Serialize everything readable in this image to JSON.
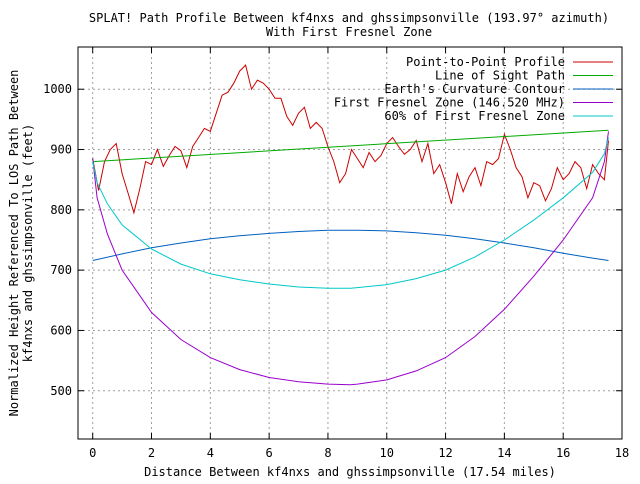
{
  "chart_data": {
    "type": "line",
    "title": "SPLAT! Path Profile Between kf4nxs and ghssimpsonville (193.97° azimuth)",
    "subtitle": "With First Fresnel Zone",
    "xlabel": "Distance Between kf4nxs and ghssimpsonville (17.54 miles)",
    "ylabel_line1": "Normalized Height Referenced To LOS Path Between",
    "ylabel_line2": "kf4nxs and ghssimpsonville (feet)",
    "xlim": [
      -0.5,
      18
    ],
    "ylim": [
      420,
      1070
    ],
    "xticks": [
      0,
      2,
      4,
      6,
      8,
      10,
      12,
      14,
      16,
      18
    ],
    "yticks": [
      500,
      600,
      700,
      800,
      900,
      1000
    ],
    "xtick_labels": [
      "0",
      "2",
      "4",
      "6",
      "8",
      "10",
      "12",
      "14",
      "16",
      "18"
    ],
    "ytick_labels": [
      "500",
      "600",
      "700",
      "800",
      "900",
      "1000"
    ],
    "grid": true,
    "legend_position": "top-right",
    "series": [
      {
        "name": "Point-to-Point Profile",
        "color": "#cc0000",
        "x": [
          0.0,
          0.2,
          0.4,
          0.6,
          0.8,
          1.0,
          1.2,
          1.4,
          1.6,
          1.8,
          2.0,
          2.2,
          2.4,
          2.6,
          2.8,
          3.0,
          3.2,
          3.4,
          3.6,
          3.8,
          4.0,
          4.2,
          4.4,
          4.6,
          4.8,
          5.0,
          5.2,
          5.4,
          5.6,
          5.8,
          6.0,
          6.2,
          6.4,
          6.6,
          6.8,
          7.0,
          7.2,
          7.4,
          7.6,
          7.8,
          8.0,
          8.2,
          8.4,
          8.6,
          8.8,
          9.0,
          9.2,
          9.4,
          9.6,
          9.8,
          10.0,
          10.2,
          10.4,
          10.6,
          10.8,
          11.0,
          11.2,
          11.4,
          11.6,
          11.8,
          12.0,
          12.2,
          12.4,
          12.6,
          12.8,
          13.0,
          13.2,
          13.4,
          13.6,
          13.8,
          14.0,
          14.2,
          14.4,
          14.6,
          14.8,
          15.0,
          15.2,
          15.4,
          15.6,
          15.8,
          16.0,
          16.2,
          16.4,
          16.6,
          16.8,
          17.0,
          17.2,
          17.4,
          17.54
        ],
        "y": [
          885,
          832,
          880,
          900,
          910,
          860,
          828,
          795,
          835,
          880,
          875,
          900,
          872,
          890,
          905,
          898,
          870,
          905,
          920,
          935,
          930,
          960,
          990,
          995,
          1010,
          1030,
          1040,
          1000,
          1015,
          1010,
          1000,
          985,
          985,
          955,
          940,
          960,
          970,
          935,
          945,
          935,
          905,
          880,
          845,
          860,
          900,
          885,
          870,
          895,
          880,
          890,
          910,
          920,
          905,
          892,
          900,
          915,
          880,
          910,
          860,
          875,
          845,
          810,
          860,
          830,
          855,
          870,
          840,
          880,
          875,
          885,
          925,
          900,
          870,
          855,
          820,
          845,
          840,
          815,
          835,
          870,
          850,
          860,
          880,
          870,
          835,
          875,
          860,
          850,
          915
        ]
      },
      {
        "name": "Line of Sight Path",
        "color": "#00aa00",
        "x": [
          0,
          17.54
        ],
        "y": [
          880,
          932
        ]
      },
      {
        "name": "Earth's Curvature Contour",
        "color": "#0060c0",
        "x": [
          0,
          1,
          2,
          3,
          4,
          5,
          6,
          7,
          8,
          8.77,
          9,
          10,
          11,
          12,
          13,
          14,
          15,
          16,
          17,
          17.54
        ],
        "y": [
          716,
          727,
          737,
          745,
          752,
          757,
          761,
          764,
          766,
          766,
          766,
          765,
          762,
          758,
          752,
          745,
          737,
          728,
          720,
          716
        ]
      },
      {
        "name": "First Fresnel Zone (146.520 MHz)",
        "color": "#9900cc",
        "x": [
          0,
          0.15,
          0.5,
          1,
          2,
          3,
          4,
          5,
          6,
          7,
          8,
          8.77,
          9,
          10,
          11,
          12,
          13,
          14,
          15,
          16,
          17,
          17.4,
          17.54
        ],
        "y": [
          885,
          820,
          760,
          700,
          630,
          585,
          555,
          535,
          522,
          515,
          511,
          510,
          511,
          518,
          533,
          555,
          590,
          635,
          690,
          750,
          820,
          880,
          930
        ]
      },
      {
        "name": "60% of First Fresnel Zone",
        "color": "#00c8c8",
        "x": [
          0,
          0.15,
          0.5,
          1,
          2,
          3,
          4,
          5,
          6,
          7,
          8,
          8.77,
          9,
          10,
          11,
          12,
          13,
          14,
          15,
          16,
          17,
          17.4,
          17.54
        ],
        "y": [
          880,
          845,
          810,
          775,
          735,
          710,
          694,
          684,
          677,
          672,
          670,
          670,
          671,
          676,
          686,
          700,
          722,
          750,
          783,
          820,
          862,
          893,
          920
        ]
      }
    ]
  }
}
